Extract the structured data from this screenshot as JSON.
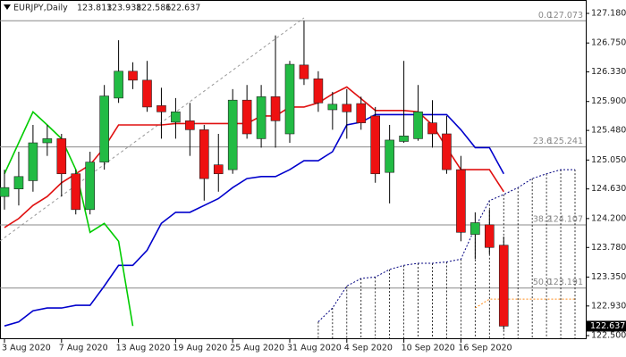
{
  "chart_data": {
    "type": "candlestick",
    "symbol": "EURJPY,Daily",
    "categories": [
      "3 Aug 2020",
      null,
      null,
      null,
      "7 Aug 2020",
      null,
      null,
      null,
      "13 Aug 2020",
      null,
      null,
      null,
      "19 Aug 2020",
      null,
      null,
      null,
      "25 Aug 2020",
      null,
      null,
      null,
      "31 Aug 2020",
      null,
      null,
      null,
      "4 Sep 2020",
      null,
      null,
      null,
      "10 Sep 2020",
      null,
      null,
      null,
      "16 Sep 2020",
      null,
      null,
      null,
      null,
      null,
      null,
      null,
      null
    ],
    "ohlc": {
      "open": [
        124.52,
        124.63,
        124.75,
        125.3,
        125.36,
        124.85,
        124.33,
        125.02,
        125.95,
        126.34,
        126.21,
        125.84,
        125.6,
        125.62,
        125.49,
        124.98,
        124.91,
        125.92,
        125.36,
        125.97,
        125.43,
        126.43,
        126.23,
        125.78,
        125.86,
        125.87,
        125.69,
        124.87,
        125.32,
        125.36,
        125.59,
        125.43,
        124.91,
        123.97,
        124.11,
        123.813,
        null,
        null,
        null,
        null,
        null
      ],
      "high": [
        124.91,
        125.17,
        125.56,
        125.56,
        125.43,
        124.91,
        125.17,
        126.14,
        126.79,
        126.47,
        126.49,
        126.1,
        125.95,
        125.88,
        125.56,
        125.43,
        126.08,
        126.14,
        126.14,
        126.86,
        126.49,
        127.073,
        126.34,
        126.04,
        126.08,
        125.97,
        125.82,
        125.56,
        126.49,
        126.14,
        125.92,
        125.69,
        125.11,
        124.29,
        124.33,
        123.938,
        null,
        null,
        null,
        null,
        null
      ],
      "low": [
        124.33,
        124.39,
        124.59,
        125.11,
        124.52,
        124.26,
        124.26,
        124.91,
        125.88,
        126.08,
        125.75,
        125.36,
        125.36,
        125.11,
        124.46,
        124.59,
        124.85,
        125.36,
        125.23,
        125.23,
        125.3,
        126.14,
        125.75,
        125.49,
        125.36,
        125.49,
        124.72,
        124.42,
        125.3,
        125.33,
        125.23,
        124.85,
        123.87,
        123.61,
        123.68,
        122.586,
        null,
        null,
        null,
        null,
        null
      ],
      "close": [
        124.65,
        124.81,
        125.3,
        125.36,
        124.85,
        124.33,
        125.02,
        125.98,
        126.34,
        126.21,
        125.82,
        125.75,
        125.75,
        125.49,
        124.78,
        124.85,
        125.92,
        125.43,
        125.97,
        125.62,
        126.44,
        126.23,
        125.88,
        125.86,
        125.75,
        125.59,
        124.85,
        125.34,
        125.4,
        125.75,
        125.43,
        124.91,
        124.0,
        124.14,
        123.78,
        122.637,
        null,
        null,
        null,
        null,
        null
      ]
    },
    "up_color": "#22bb44",
    "down_color": "#ee1111",
    "lines": [
      {
        "color": "#e01010",
        "style": "solid",
        "values": [
          124.07,
          124.2,
          124.39,
          124.52,
          124.72,
          124.85,
          124.98,
          125.23,
          125.56,
          125.56,
          125.56,
          125.56,
          125.58,
          125.58,
          125.58,
          125.58,
          125.58,
          125.58,
          125.69,
          125.69,
          125.82,
          125.82,
          125.88,
          126.01,
          126.11,
          125.94,
          125.77,
          125.77,
          125.77,
          125.75,
          125.56,
          125.23,
          124.91,
          124.91,
          124.91,
          124.59,
          null,
          null,
          null,
          null,
          null
        ]
      },
      {
        "color": "#0000cc",
        "style": "solid",
        "values": [
          122.64,
          122.7,
          122.86,
          122.9,
          122.9,
          122.94,
          122.94,
          123.22,
          123.52,
          123.52,
          123.74,
          124.13,
          124.29,
          124.29,
          124.39,
          124.49,
          124.65,
          124.78,
          124.81,
          124.81,
          124.91,
          125.04,
          125.04,
          125.17,
          125.56,
          125.6,
          125.71,
          125.71,
          125.71,
          125.71,
          125.71,
          125.71,
          125.49,
          125.23,
          125.23,
          124.85,
          null,
          null,
          null,
          null,
          null
        ]
      },
      {
        "color": "#00cc00",
        "style": "solid",
        "values": [
          124.85,
          125.3,
          125.75,
          125.56,
          125.36,
          124.91,
          124.0,
          124.13,
          123.87,
          122.64,
          null,
          null,
          null,
          null,
          null,
          null,
          null,
          null,
          null,
          null,
          null,
          null,
          null,
          null,
          null,
          null,
          null,
          null,
          null,
          null,
          null,
          null,
          null,
          null,
          null,
          null,
          null,
          null,
          null,
          null,
          null
        ]
      },
      {
        "color": "#000080",
        "style": "dotted",
        "hatch": true,
        "values": [
          null,
          null,
          null,
          null,
          null,
          null,
          null,
          null,
          null,
          null,
          null,
          null,
          null,
          null,
          null,
          null,
          null,
          null,
          null,
          null,
          null,
          null,
          122.7,
          122.9,
          123.22,
          123.33,
          123.35,
          123.46,
          123.52,
          123.55,
          123.55,
          123.57,
          123.61,
          124.07,
          124.46,
          124.55,
          124.65,
          124.78,
          124.85,
          124.91,
          124.91
        ]
      },
      {
        "color": "#ff8c1a",
        "style": "dotted",
        "values": [
          null,
          null,
          null,
          null,
          null,
          null,
          null,
          null,
          null,
          null,
          null,
          null,
          null,
          null,
          null,
          null,
          null,
          null,
          null,
          null,
          null,
          null,
          null,
          null,
          null,
          null,
          null,
          null,
          null,
          null,
          null,
          null,
          null,
          122.9,
          123.03,
          123.03,
          123.03,
          123.03,
          123.03,
          123.03,
          123.03
        ]
      }
    ],
    "fibonacci": [
      {
        "level": "0.0",
        "price": 127.073
      },
      {
        "level": "23.6",
        "price": 125.241
      },
      {
        "level": "38.2",
        "price": 124.107
      },
      {
        "level": "50.0",
        "price": 123.191
      }
    ],
    "ylim": [
      122.5,
      127.18
    ],
    "yticks": [
      {
        "value": 127.18,
        "label": "127.180"
      },
      {
        "value": 126.75,
        "label": "126.750"
      },
      {
        "value": 126.33,
        "label": "126.330"
      },
      {
        "value": 125.9,
        "label": "125.900"
      },
      {
        "value": 125.48,
        "label": "125.480"
      },
      {
        "value": 125.05,
        "label": "125.050"
      },
      {
        "value": 124.63,
        "label": "124.630"
      },
      {
        "value": 124.2,
        "label": "124.200"
      },
      {
        "value": 123.78,
        "label": "123.780"
      },
      {
        "value": 123.35,
        "label": "123.350"
      },
      {
        "value": 122.93,
        "label": "122.930"
      },
      {
        "value": 122.5,
        "label": "122.500"
      }
    ]
  }
}
